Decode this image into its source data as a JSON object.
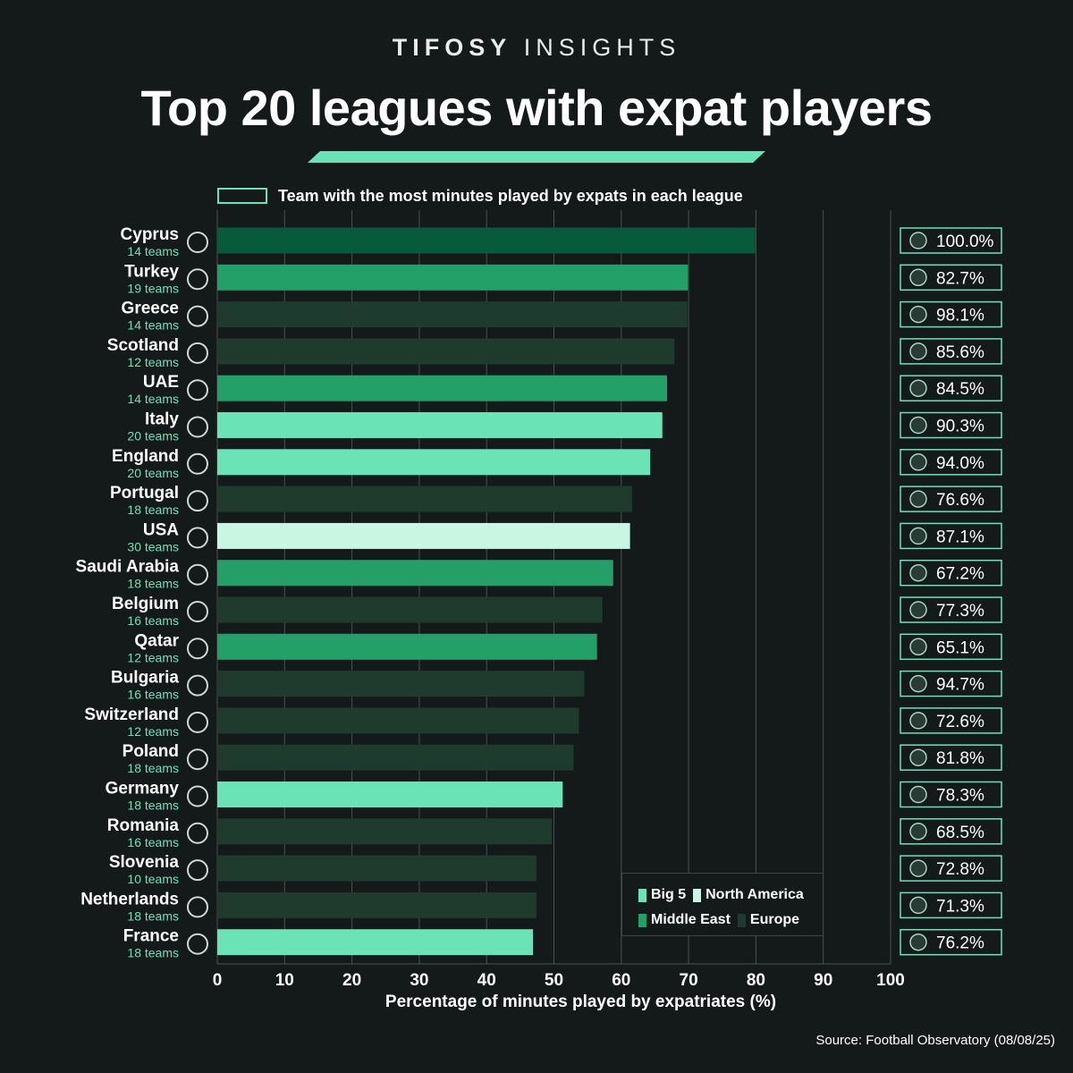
{
  "header": {
    "brand_bold": "TIFOSY",
    "brand_light": "INSIGHTS",
    "title": "Top 20 leagues with expat players",
    "caption": "Team with the most minutes played by expats in each league"
  },
  "source": "Source: Football Observatory (08/08/25)",
  "colors": {
    "background": "#141a19",
    "big5": "#6ae3b7",
    "north_america": "#c9f6e3",
    "middle_east": "#23a068",
    "europe": "#1f3b2d",
    "highlight_europe": "#075a3c",
    "accent": "#6ae3b7",
    "teams_text": "#6ae3b7"
  },
  "legend": {
    "items": [
      {
        "label": "Big 5",
        "color": "#6ae3b7"
      },
      {
        "label": "North America",
        "color": "#c9f6e3"
      },
      {
        "label": "Middle East",
        "color": "#23a068"
      },
      {
        "label": "Europe",
        "color": "#1f3b2d"
      }
    ]
  },
  "chart_data": {
    "type": "bar",
    "orientation": "horizontal",
    "title": "Top 20 leagues with expat players",
    "xlabel": "Percentage of minutes played by expatriates (%)",
    "ylabel": "",
    "xlim": [
      0,
      100
    ],
    "xticks": [
      0,
      10,
      20,
      30,
      40,
      50,
      60,
      70,
      80,
      90,
      100
    ],
    "grid": true,
    "categories": [
      "Cyprus",
      "Turkey",
      "Greece",
      "Scotland",
      "UAE",
      "Italy",
      "England",
      "Portugal",
      "USA",
      "Saudi Arabia",
      "Belgium",
      "Qatar",
      "Bulgaria",
      "Switzerland",
      "Poland",
      "Germany",
      "Romania",
      "Slovenia",
      "Netherlands",
      "France"
    ],
    "teams": [
      "14 teams",
      "19 teams",
      "14 teams",
      "12 teams",
      "14 teams",
      "20 teams",
      "20 teams",
      "18 teams",
      "30 teams",
      "18 teams",
      "16 teams",
      "12 teams",
      "16 teams",
      "12 teams",
      "18 teams",
      "18 teams",
      "16 teams",
      "10 teams",
      "18 teams",
      "18 teams"
    ],
    "values": [
      79.9,
      69.9,
      69.8,
      67.9,
      66.8,
      66.1,
      64.3,
      61.6,
      61.3,
      58.8,
      57.2,
      56.4,
      54.5,
      53.7,
      52.9,
      51.3,
      49.7,
      47.4,
      47.4,
      46.9
    ],
    "groups": [
      "Europe*",
      "Middle East",
      "Europe",
      "Europe",
      "Middle East",
      "Big 5",
      "Big 5",
      "Europe",
      "North America",
      "Middle East",
      "Europe",
      "Middle East",
      "Europe",
      "Europe",
      "Europe",
      "Big 5",
      "Europe",
      "Europe",
      "Europe",
      "Big 5"
    ],
    "top_team_pct": [
      "100.0%",
      "82.7%",
      "98.1%",
      "85.6%",
      "84.5%",
      "90.3%",
      "94.0%",
      "76.6%",
      "87.1%",
      "67.2%",
      "77.3%",
      "65.1%",
      "94.7%",
      "72.6%",
      "81.8%",
      "78.3%",
      "68.5%",
      "72.8%",
      "71.3%",
      "76.2%"
    ],
    "legend_position": "bottom-right"
  }
}
